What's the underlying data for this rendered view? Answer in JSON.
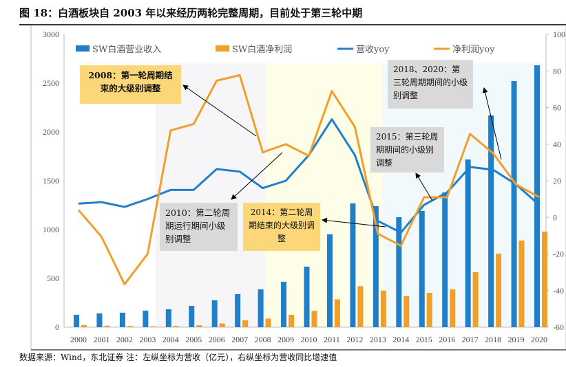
{
  "title": "图 18：白酒板块自 2003 年以来经历两轮完整周期，目前处于第三轮中期",
  "source": "数据来源：Wind，东北证券 注：左纵坐标为营收（亿元），右纵坐标为营收同比增速值",
  "annotations": [
    {
      "text": "2008：第一轮周期结束的大级别调整",
      "style": "yellow"
    },
    {
      "text": "2010：第二轮周期运行期间小级别调整",
      "style": "grey"
    },
    {
      "text": "2014：第二轮周期结束的大级别调整",
      "style": "yellow"
    },
    {
      "text": "2015：第三轮周期期间的小级别调整",
      "style": "grey"
    },
    {
      "text": "2018、2020：第三轮周期期间的小级别调整",
      "style": "grey"
    }
  ],
  "chart_data": {
    "type": "bar+line",
    "categories": [
      "2000",
      "2001",
      "2002",
      "2003",
      "2004",
      "2005",
      "2006",
      "2007",
      "2008",
      "2009",
      "2010",
      "2011",
      "2012",
      "2013",
      "2014",
      "2015",
      "2016",
      "2017",
      "2018",
      "2019",
      "2020"
    ],
    "left_axis": {
      "ylim": [
        0,
        3000
      ],
      "ticks": [
        0,
        500,
        1000,
        1500,
        2000,
        2500,
        3000
      ]
    },
    "right_axis": {
      "ylim": [
        -60,
        100
      ],
      "ticks": [
        -60,
        -40,
        -20,
        0,
        20,
        40,
        60,
        80,
        100
      ]
    },
    "series": [
      {
        "name": "SW白酒营业收入",
        "type": "bar",
        "axis": "left",
        "color": "#1f7fc8",
        "values": [
          127,
          140,
          148,
          169,
          183,
          218,
          275,
          338,
          387,
          465,
          620,
          951,
          1268,
          1240,
          1127,
          1190,
          1380,
          1718,
          2169,
          2521,
          2683
        ]
      },
      {
        "name": "SW白酒净利润",
        "type": "bar",
        "axis": "left",
        "color": "#f0a02a",
        "values": [
          22,
          15,
          12,
          8,
          12,
          20,
          38,
          70,
          88,
          127,
          168,
          285,
          420,
          375,
          317,
          352,
          387,
          563,
          753,
          887,
          979
        ]
      },
      {
        "name": "营收yoy",
        "type": "line",
        "axis": "right",
        "color": "#1f7fc8",
        "values": [
          7.5,
          8.3,
          5.7,
          10,
          15,
          15,
          26.4,
          25,
          16,
          20,
          34,
          53.6,
          34,
          -2,
          -8.3,
          6.8,
          13.6,
          27.5,
          26,
          18,
          6.8
        ]
      },
      {
        "name": "净利润yoy",
        "type": "line",
        "axis": "right",
        "color": "#f0a02a",
        "values": [
          4,
          -10.6,
          -36.6,
          -20,
          47.5,
          51,
          74.7,
          77.7,
          35.5,
          40,
          33.6,
          69,
          49.4,
          -9,
          -15.5,
          11,
          11,
          45.6,
          35,
          18,
          11
        ]
      }
    ],
    "legend": "top",
    "grid": false
  }
}
